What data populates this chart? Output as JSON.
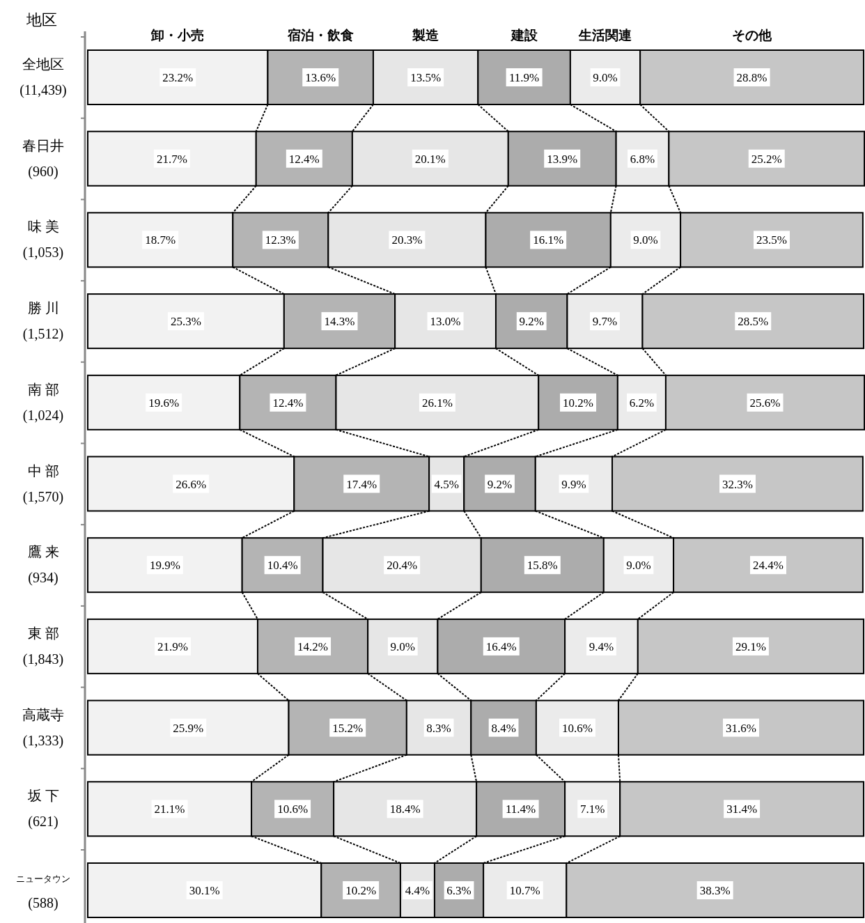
{
  "chart_data": {
    "type": "bar",
    "orientation": "horizontal",
    "stacked": true,
    "ylabel": "地区",
    "xlim": [
      0,
      100
    ],
    "categories": [
      "全地区\n(11,439)",
      "春日井\n(960)",
      "味 美\n(1,053)",
      "勝 川\n(1,512)",
      "南 部\n(1,024)",
      "中 部\n(1,570)",
      "鷹 来\n(934)",
      "東 部\n(1,843)",
      "高蔵寺\n(1,333)",
      "坂 下\n(621)",
      "ニュータウン\n(588)"
    ],
    "series": [
      {
        "name": "卸・小売",
        "color": "#f2f2f2",
        "values": [
          23.2,
          21.7,
          18.7,
          25.3,
          19.6,
          26.6,
          19.9,
          21.9,
          25.9,
          21.1,
          30.1
        ],
        "value_labels": [
          "23.2%",
          "21.7%",
          "18.7%",
          "25.3%",
          "19.6%",
          "26.6%",
          "19.9%",
          "21.9%",
          "25.9%",
          "21.1%",
          "30.1%"
        ]
      },
      {
        "name": "宿泊・飲食",
        "color": "#b4b4b4",
        "values": [
          13.6,
          12.4,
          12.3,
          14.3,
          12.4,
          17.4,
          10.4,
          14.2,
          15.2,
          10.6,
          10.2
        ],
        "value_labels": [
          "13.6%",
          "12.4%",
          "12.3%",
          "14.3%",
          "12.4%",
          "17.4%",
          "10.4%",
          "14.2%",
          "15.2%",
          "10.6%",
          "10.2%"
        ]
      },
      {
        "name": "製造",
        "color": "#e6e6e6",
        "values": [
          13.5,
          20.1,
          20.3,
          13.0,
          26.1,
          4.5,
          20.4,
          9.0,
          8.3,
          18.4,
          4.4
        ],
        "value_labels": [
          "13.5%",
          "20.1%",
          "20.3%",
          "13.0%",
          "26.1%",
          "4.5%",
          "20.4%",
          "9.0%",
          "8.3%",
          "18.4%",
          "4.4%"
        ]
      },
      {
        "name": "建設",
        "color": "#acacac",
        "values": [
          11.9,
          13.9,
          16.1,
          9.2,
          10.2,
          9.2,
          15.8,
          16.4,
          8.4,
          11.4,
          6.3
        ],
        "value_labels": [
          "11.9%",
          "13.9%",
          "16.1%",
          "9.2%",
          "10.2%",
          "9.2%",
          "15.8%",
          "16.4%",
          "8.4%",
          "11.4%",
          "6.3%"
        ]
      },
      {
        "name": "生活関連",
        "color": "#ebebeb",
        "values": [
          9.0,
          6.8,
          9.0,
          9.7,
          6.2,
          9.9,
          9.0,
          9.4,
          10.6,
          7.1,
          10.7
        ],
        "value_labels": [
          "9.0%",
          "6.8%",
          "9.0%",
          "9.7%",
          "6.2%",
          "9.9%",
          "9.0%",
          "9.4%",
          "10.6%",
          "7.1%",
          "10.7%"
        ]
      },
      {
        "name": "その他",
        "color": "#c6c6c6",
        "values": [
          28.8,
          25.2,
          23.5,
          28.5,
          25.6,
          32.3,
          24.4,
          29.1,
          31.6,
          31.4,
          38.3
        ],
        "value_labels": [
          "28.8%",
          "25.2%",
          "23.5%",
          "28.5%",
          "25.6%",
          "32.3%",
          "24.4%",
          "29.1%",
          "31.6%",
          "31.4%",
          "38.3%"
        ]
      }
    ]
  }
}
